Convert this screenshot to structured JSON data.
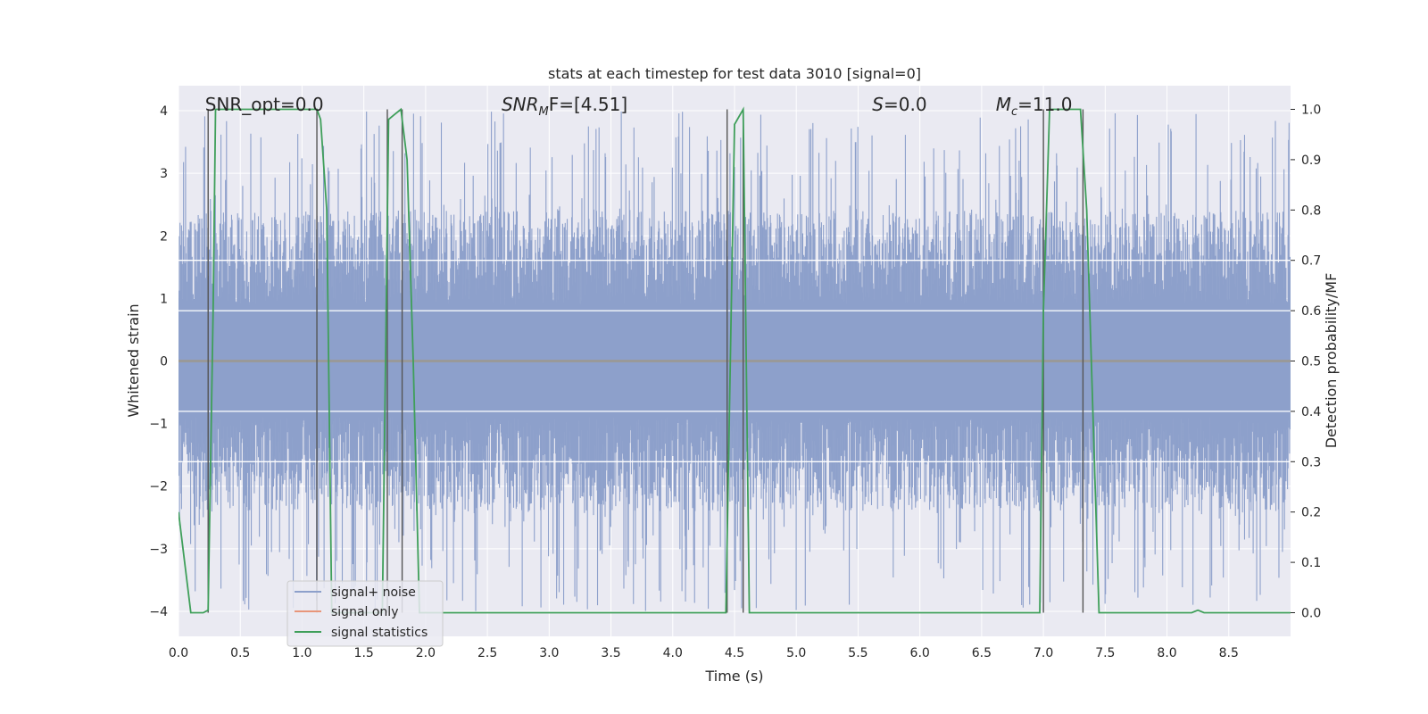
{
  "chart_data": {
    "type": "line",
    "title": "stats at each timestep for test data 3010 [signal=0]",
    "xlabel": "Time (s)",
    "ylabel_left": "Whitened strain",
    "ylabel_right": "Detection probability/MF",
    "xlim": [
      0.0,
      9.0
    ],
    "ylim_left": [
      -4.4,
      4.4
    ],
    "ylim_right": [
      -0.047,
      1.047
    ],
    "x_ticks": [
      0.0,
      0.5,
      1.0,
      1.5,
      2.0,
      2.5,
      3.0,
      3.5,
      4.0,
      4.5,
      5.0,
      5.5,
      6.0,
      6.5,
      7.0,
      7.5,
      8.0,
      8.5
    ],
    "x_tick_labels": [
      "0.0",
      "0.5",
      "1.0",
      "1.5",
      "2.0",
      "2.5",
      "3.0",
      "3.5",
      "4.0",
      "4.5",
      "5.0",
      "5.5",
      "6.0",
      "6.5",
      "7.0",
      "7.5",
      "8.0",
      "8.5"
    ],
    "y_left_ticks": [
      -4,
      -3,
      -2,
      -1,
      0,
      1,
      2,
      3,
      4
    ],
    "y_left_tick_labels": [
      "−4",
      "−3",
      "−2",
      "−1",
      "0",
      "1",
      "2",
      "3",
      "4"
    ],
    "y_right_ticks": [
      0.0,
      0.1,
      0.2,
      0.3,
      0.4,
      0.5,
      0.6,
      0.7,
      0.8,
      0.9,
      1.0
    ],
    "y_right_tick_labels": [
      "0.0",
      "0.1",
      "0.2",
      "0.3",
      "0.4",
      "0.5",
      "0.6",
      "0.7",
      "0.8",
      "0.9",
      "1.0"
    ],
    "grid": true,
    "legend_position": "lower-left",
    "annotations": [
      {
        "key": "snr-opt",
        "prefix": "SNR_opt=0.0",
        "sub": "",
        "suffix": "",
        "x": 0.2
      },
      {
        "key": "snr-mf",
        "prefix": "SNR",
        "sub": "M",
        "suffix": "F=[4.51]",
        "x": 2.6
      },
      {
        "key": "s",
        "prefix": "S",
        "sub": "",
        "suffix": "=0.0",
        "x": 5.6
      },
      {
        "key": "mc",
        "prefix": "M",
        "sub": "c",
        "suffix": "=11.0",
        "x": 6.6
      }
    ],
    "noise_envelope": {
      "amplitude": 2.4,
      "peak_amplitude": 4.0,
      "description": "whitened noise, approx. symmetric around 0"
    },
    "series": [
      {
        "name": "signal+ noise",
        "color": "#8da0cb",
        "axis": "left"
      },
      {
        "name": "signal only",
        "color": "#e8967a",
        "axis": "left",
        "x": [
          0.0,
          9.0
        ],
        "y": [
          0.0,
          0.0
        ]
      },
      {
        "name": "signal statistics",
        "color": "#3f9f5a",
        "axis": "right",
        "x": [
          0.0,
          0.05,
          0.1,
          0.15,
          0.2,
          0.24,
          0.28,
          0.3,
          0.35,
          1.0,
          1.12,
          1.15,
          1.2,
          1.24,
          1.3,
          1.5,
          1.65,
          1.7,
          1.75,
          1.8,
          1.85,
          1.9,
          1.95,
          2.0,
          3.0,
          4.0,
          4.43,
          4.5,
          4.57,
          4.62,
          5.0,
          6.0,
          6.97,
          7.0,
          7.05,
          7.3,
          7.35,
          7.45,
          7.6,
          8.0,
          8.2,
          8.25,
          8.3,
          8.4,
          9.0
        ],
        "y": [
          0.2,
          0.1,
          0.0,
          0.0,
          0.0,
          0.005,
          0.6,
          1.0,
          1.0,
          1.0,
          1.0,
          0.98,
          0.8,
          0.0,
          0.0,
          0.0,
          0.0,
          0.98,
          0.99,
          1.0,
          0.9,
          0.5,
          0.0,
          0.0,
          0.0,
          0.0,
          0.0,
          0.97,
          1.0,
          0.0,
          0.0,
          0.0,
          0.0,
          0.6,
          1.0,
          1.0,
          0.8,
          0.0,
          0.0,
          0.0,
          0.0,
          0.005,
          0.0,
          0.0,
          0.0
        ]
      }
    ],
    "vertical_lines": [
      {
        "x": 0.24,
        "ymin": 0.0,
        "ymax": 1.0
      },
      {
        "x": 1.12,
        "ymin": 0.0,
        "ymax": 1.0
      },
      {
        "x": 1.69,
        "ymin": 0.0,
        "ymax": 1.0
      },
      {
        "x": 1.81,
        "ymin": 0.0,
        "ymax": 1.0
      },
      {
        "x": 4.44,
        "ymin": 0.0,
        "ymax": 1.0
      },
      {
        "x": 4.57,
        "ymin": 0.0,
        "ymax": 1.0
      },
      {
        "x": 7.0,
        "ymin": 0.0,
        "ymax": 1.0
      },
      {
        "x": 7.32,
        "ymin": 0.0,
        "ymax": 1.0
      }
    ],
    "horizontal_rules_right": [
      0.5,
      0.4,
      0.3,
      0.6,
      0.7
    ]
  },
  "colors": {
    "background": "#eaeaf2",
    "grid": "#ffffff",
    "noise": "#8da0cb",
    "signal": "#e8967a",
    "statistics": "#3f9f5a",
    "vline": "#555555",
    "text": "#262626"
  }
}
